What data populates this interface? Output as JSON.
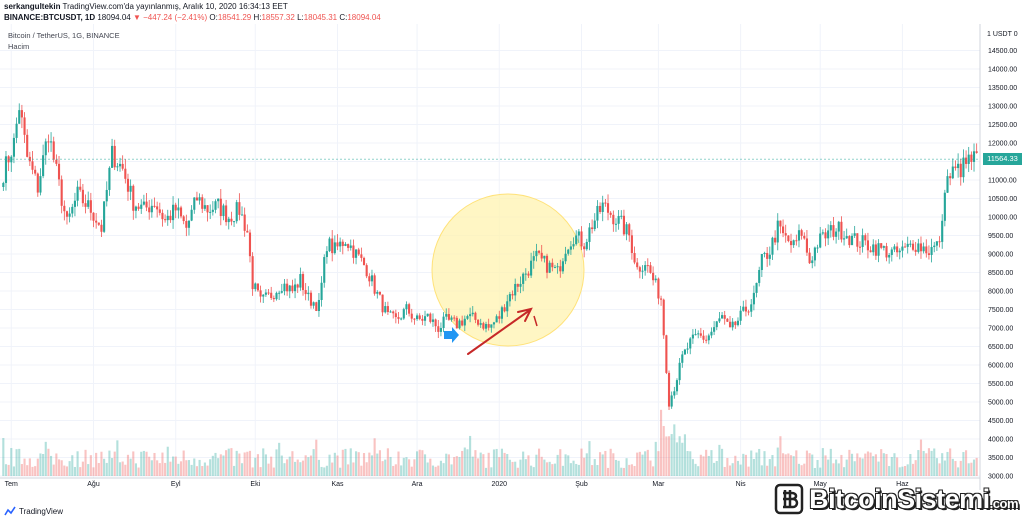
{
  "header": {
    "user": "serkangultekin",
    "published": "TradingView.com'da yayınlanmış, Aralık 10, 2020 16:34:13 EET",
    "symbol": "BINANCE:BTCUSDT, 1D",
    "last": "18094.04",
    "change": "▼ −447.24 (−2.41%)",
    "o_label": "O:",
    "o_value": "18541.29",
    "h_label": "H:",
    "h_value": "18557.32",
    "l_label": "L:",
    "l_value": "18045.31",
    "c_label": "C:",
    "c_value": "18094.04"
  },
  "legend": {
    "instrument": "Bitcoin / TetherUS, 1G, BINANCE",
    "volume": "Hacim"
  },
  "footer": {
    "brand": "TradingView",
    "watermark": "BitcoinSistemi",
    "watermark_suffix": ".com"
  },
  "colors": {
    "up": "#26a69a",
    "down": "#ef5350",
    "highlight": "#fff3b0",
    "arrow": "#c62828",
    "marker": "#2196f3"
  },
  "chart_data": {
    "type": "candlestick",
    "currency_label": "1 USDT 0",
    "last_price_label": "11564.33",
    "last_price": 11564.33,
    "ylim": [
      3000,
      15000
    ],
    "yticks": [
      3000,
      3500,
      4000,
      4500,
      5000,
      5500,
      6000,
      6500,
      7000,
      7500,
      8000,
      8500,
      9000,
      9500,
      10000,
      10500,
      11000,
      11500,
      12000,
      12500,
      13000,
      13500,
      14000,
      14500
    ],
    "ytick_labels": [
      "3000.00",
      "3500.00",
      "4000.00",
      "4500.00",
      "5000.00",
      "5500.00",
      "6000.00",
      "6500.00",
      "7000.00",
      "7500.00",
      "8000.00",
      "8500.00",
      "9000.00",
      "9500.00",
      "10000.00",
      "10500.00",
      "11000.00",
      "11500.00",
      "12000.00",
      "12500.00",
      "13000.00",
      "13500.00",
      "14000.00",
      "14500.00"
    ],
    "xtick_labels": [
      "Tem",
      "Ağu",
      "Eyl",
      "Eki",
      "Kas",
      "Ara",
      "2020",
      "Şub",
      "Mar",
      "Nis",
      "May",
      "Haz"
    ],
    "xtick_index": [
      3,
      34,
      65,
      95,
      126,
      156,
      187,
      218,
      247,
      278,
      308,
      339
    ],
    "close_path": [
      [
        0,
        11200
      ],
      [
        4,
        12000
      ],
      [
        6,
        13000
      ],
      [
        9,
        11600
      ],
      [
        13,
        10800
      ],
      [
        17,
        12300
      ],
      [
        20,
        11200
      ],
      [
        24,
        9800
      ],
      [
        28,
        10600
      ],
      [
        33,
        10200
      ],
      [
        37,
        9700
      ],
      [
        41,
        11700
      ],
      [
        45,
        11300
      ],
      [
        49,
        10400
      ],
      [
        53,
        10200
      ],
      [
        57,
        10400
      ],
      [
        61,
        9900
      ],
      [
        65,
        10200
      ],
      [
        69,
        9700
      ],
      [
        73,
        10500
      ],
      [
        77,
        10200
      ],
      [
        81,
        10300
      ],
      [
        85,
        10000
      ],
      [
        89,
        10200
      ],
      [
        92,
        9600
      ],
      [
        94,
        8200
      ],
      [
        97,
        7700
      ],
      [
        101,
        7900
      ],
      [
        105,
        8200
      ],
      [
        109,
        8000
      ],
      [
        112,
        8300
      ],
      [
        115,
        7800
      ],
      [
        119,
        7600
      ],
      [
        122,
        9300
      ],
      [
        125,
        9100
      ],
      [
        129,
        9400
      ],
      [
        133,
        9000
      ],
      [
        137,
        8600
      ],
      [
        141,
        7900
      ],
      [
        145,
        7300
      ],
      [
        148,
        7200
      ],
      [
        152,
        7500
      ],
      [
        156,
        7200
      ],
      [
        160,
        7300
      ],
      [
        164,
        7000
      ],
      [
        167,
        7200
      ],
      [
        171,
        7100
      ],
      [
        175,
        7300
      ],
      [
        179,
        7200
      ],
      [
        183,
        7000
      ],
      [
        187,
        7300
      ],
      [
        190,
        7800
      ],
      [
        194,
        8200
      ],
      [
        197,
        8500
      ],
      [
        201,
        8900
      ],
      [
        205,
        8700
      ],
      [
        209,
        8500
      ],
      [
        212,
        9200
      ],
      [
        215,
        9500
      ],
      [
        219,
        9300
      ],
      [
        222,
        9800
      ],
      [
        226,
        10300
      ],
      [
        229,
        10100
      ],
      [
        233,
        9800
      ],
      [
        236,
        9500
      ],
      [
        239,
        8600
      ],
      [
        242,
        8800
      ],
      [
        245,
        8300
      ],
      [
        248,
        7800
      ],
      [
        251,
        5000
      ],
      [
        253,
        5400
      ],
      [
        256,
        6200
      ],
      [
        259,
        6600
      ],
      [
        262,
        6800
      ],
      [
        265,
        6700
      ],
      [
        268,
        7000
      ],
      [
        271,
        7300
      ],
      [
        274,
        6900
      ],
      [
        277,
        7200
      ],
      [
        280,
        7500
      ],
      [
        283,
        7800
      ],
      [
        286,
        8800
      ],
      [
        289,
        9100
      ],
      [
        292,
        9700
      ],
      [
        295,
        9400
      ],
      [
        298,
        9200
      ],
      [
        301,
        9600
      ],
      [
        304,
        8800
      ],
      [
        307,
        9300
      ],
      [
        310,
        9500
      ],
      [
        314,
        9700
      ],
      [
        317,
        9600
      ],
      [
        320,
        9400
      ],
      [
        324,
        9300
      ],
      [
        328,
        9200
      ],
      [
        332,
        9100
      ],
      [
        336,
        9000
      ],
      [
        340,
        9100
      ],
      [
        343,
        9300
      ],
      [
        346,
        9200
      ],
      [
        349,
        9100
      ],
      [
        352,
        9200
      ],
      [
        354,
        9700
      ],
      [
        355,
        10900
      ],
      [
        358,
        11200
      ],
      [
        361,
        11300
      ],
      [
        364,
        11500
      ],
      [
        366,
        11564
      ]
    ],
    "annotations": [
      "highlight-circle",
      "rising-arrow",
      "entry-marker"
    ]
  }
}
